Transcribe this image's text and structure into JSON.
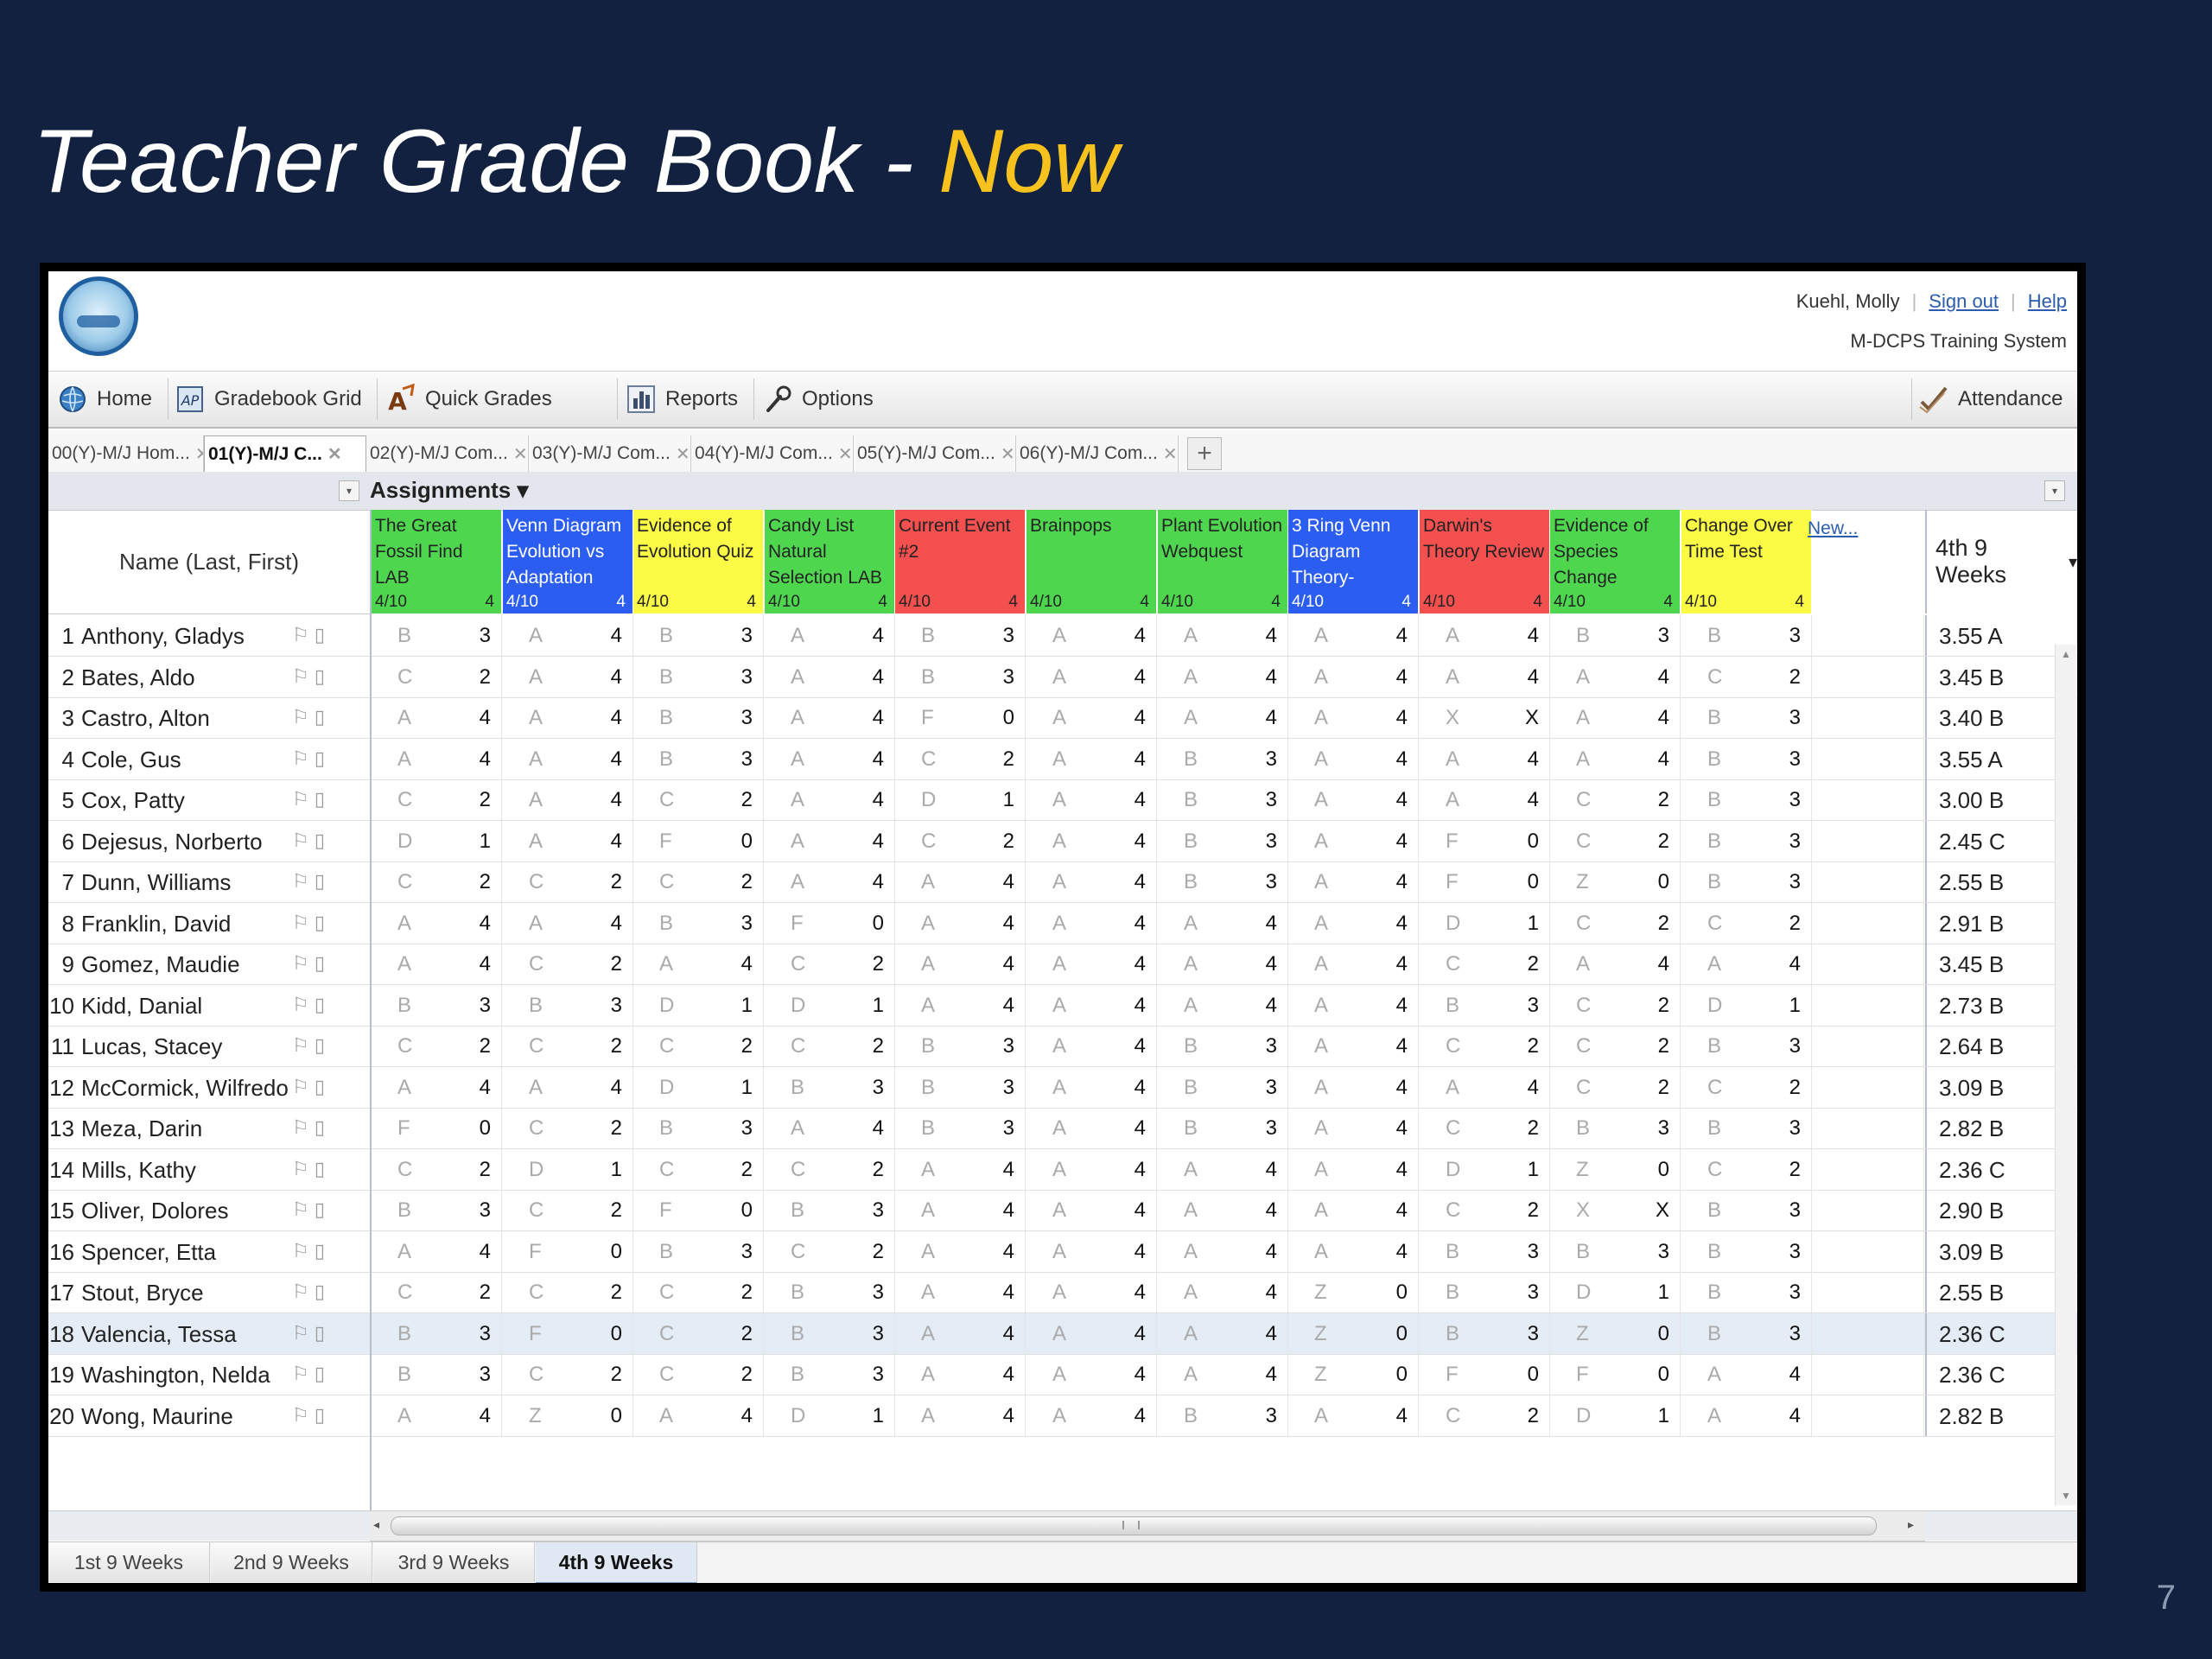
{
  "slide": {
    "title_main": "Teacher Grade Book - ",
    "title_highlight": "Now",
    "page_number": "7"
  },
  "header": {
    "user_name": "Kuehl, Molly",
    "sign_out": "Sign out",
    "help": "Help",
    "system_name": "M-DCPS Training System"
  },
  "toolbar": {
    "home": "Home",
    "gradebook_grid": "Gradebook Grid",
    "quick_grades": "Quick Grades",
    "reports": "Reports",
    "options": "Options",
    "attendance": "Attendance"
  },
  "class_tabs": [
    {
      "label": "00(Y)-M/J Hom...",
      "active": false
    },
    {
      "label": "01(Y)-M/J C...",
      "active": true
    },
    {
      "label": "02(Y)-M/J Com...",
      "active": false
    },
    {
      "label": "03(Y)-M/J Com...",
      "active": false
    },
    {
      "label": "04(Y)-M/J Com...",
      "active": false
    },
    {
      "label": "05(Y)-M/J Com...",
      "active": false
    },
    {
      "label": "06(Y)-M/J Com...",
      "active": false
    }
  ],
  "grid": {
    "assignments_label": "Assignments",
    "name_header": "Name (Last, First)",
    "new_link": "New...",
    "term_header": "4th 9 Weeks",
    "assignments": [
      {
        "name": "The Great Fossil Find LAB",
        "date": "4/10",
        "points": "4",
        "color": "#4fd64f"
      },
      {
        "name": "Venn Diagram Evolution vs Adaptation",
        "date": "4/10",
        "points": "4",
        "color": "#2b5ef0"
      },
      {
        "name": "Evidence of Evolution Quiz",
        "date": "4/10",
        "points": "4",
        "color": "#fbfb45"
      },
      {
        "name": "Candy List Natural Selection LAB",
        "date": "4/10",
        "points": "4",
        "color": "#4fd64f"
      },
      {
        "name": "Current Event #2",
        "date": "4/10",
        "points": "4",
        "color": "#f55050"
      },
      {
        "name": "Brainpops",
        "date": "4/10",
        "points": "4",
        "color": "#4fd64f"
      },
      {
        "name": "Plant Evolution Webquest",
        "date": "4/10",
        "points": "4",
        "color": "#4fd64f"
      },
      {
        "name": "3 Ring Venn Diagram Theory-",
        "date": "4/10",
        "points": "4",
        "color": "#2b5ef0"
      },
      {
        "name": "Darwin's Theory Review",
        "date": "4/10",
        "points": "4",
        "color": "#f55050"
      },
      {
        "name": "Evidence of Species Change Formal",
        "date": "4/10",
        "points": "4",
        "color": "#4fd64f"
      },
      {
        "name": "Change Over Time Test",
        "date": "4/10",
        "points": "4",
        "color": "#fbfb45"
      }
    ],
    "students": [
      {
        "num": "1",
        "name": "Anthony, Gladys",
        "grades": [
          [
            "B",
            "3"
          ],
          [
            "A",
            "4"
          ],
          [
            "B",
            "3"
          ],
          [
            "A",
            "4"
          ],
          [
            "B",
            "3"
          ],
          [
            "A",
            "4"
          ],
          [
            "A",
            "4"
          ],
          [
            "A",
            "4"
          ],
          [
            "A",
            "4"
          ],
          [
            "B",
            "3"
          ],
          [
            "B",
            "3"
          ]
        ],
        "total": "3.55 A"
      },
      {
        "num": "2",
        "name": "Bates, Aldo",
        "grades": [
          [
            "C",
            "2"
          ],
          [
            "A",
            "4"
          ],
          [
            "B",
            "3"
          ],
          [
            "A",
            "4"
          ],
          [
            "B",
            "3"
          ],
          [
            "A",
            "4"
          ],
          [
            "A",
            "4"
          ],
          [
            "A",
            "4"
          ],
          [
            "A",
            "4"
          ],
          [
            "A",
            "4"
          ],
          [
            "C",
            "2"
          ]
        ],
        "total": "3.45 B"
      },
      {
        "num": "3",
        "name": "Castro, Alton",
        "grades": [
          [
            "A",
            "4"
          ],
          [
            "A",
            "4"
          ],
          [
            "B",
            "3"
          ],
          [
            "A",
            "4"
          ],
          [
            "F",
            "0"
          ],
          [
            "A",
            "4"
          ],
          [
            "A",
            "4"
          ],
          [
            "A",
            "4"
          ],
          [
            "X",
            "X"
          ],
          [
            "A",
            "4"
          ],
          [
            "B",
            "3"
          ]
        ],
        "total": "3.40 B"
      },
      {
        "num": "4",
        "name": "Cole, Gus",
        "grades": [
          [
            "A",
            "4"
          ],
          [
            "A",
            "4"
          ],
          [
            "B",
            "3"
          ],
          [
            "A",
            "4"
          ],
          [
            "C",
            "2"
          ],
          [
            "A",
            "4"
          ],
          [
            "B",
            "3"
          ],
          [
            "A",
            "4"
          ],
          [
            "A",
            "4"
          ],
          [
            "A",
            "4"
          ],
          [
            "B",
            "3"
          ]
        ],
        "total": "3.55 A"
      },
      {
        "num": "5",
        "name": "Cox, Patty",
        "grades": [
          [
            "C",
            "2"
          ],
          [
            "A",
            "4"
          ],
          [
            "C",
            "2"
          ],
          [
            "A",
            "4"
          ],
          [
            "D",
            "1"
          ],
          [
            "A",
            "4"
          ],
          [
            "B",
            "3"
          ],
          [
            "A",
            "4"
          ],
          [
            "A",
            "4"
          ],
          [
            "C",
            "2"
          ],
          [
            "B",
            "3"
          ]
        ],
        "total": "3.00 B"
      },
      {
        "num": "6",
        "name": "Dejesus, Norberto",
        "grades": [
          [
            "D",
            "1"
          ],
          [
            "A",
            "4"
          ],
          [
            "F",
            "0"
          ],
          [
            "A",
            "4"
          ],
          [
            "C",
            "2"
          ],
          [
            "A",
            "4"
          ],
          [
            "B",
            "3"
          ],
          [
            "A",
            "4"
          ],
          [
            "F",
            "0"
          ],
          [
            "C",
            "2"
          ],
          [
            "B",
            "3"
          ]
        ],
        "total": "2.45 C"
      },
      {
        "num": "7",
        "name": "Dunn, Williams",
        "grades": [
          [
            "C",
            "2"
          ],
          [
            "C",
            "2"
          ],
          [
            "C",
            "2"
          ],
          [
            "A",
            "4"
          ],
          [
            "A",
            "4"
          ],
          [
            "A",
            "4"
          ],
          [
            "B",
            "3"
          ],
          [
            "A",
            "4"
          ],
          [
            "F",
            "0"
          ],
          [
            "Z",
            "0"
          ],
          [
            "B",
            "3"
          ]
        ],
        "total": "2.55 B"
      },
      {
        "num": "8",
        "name": "Franklin, David",
        "grades": [
          [
            "A",
            "4"
          ],
          [
            "A",
            "4"
          ],
          [
            "B",
            "3"
          ],
          [
            "F",
            "0"
          ],
          [
            "A",
            "4"
          ],
          [
            "A",
            "4"
          ],
          [
            "A",
            "4"
          ],
          [
            "A",
            "4"
          ],
          [
            "D",
            "1"
          ],
          [
            "C",
            "2"
          ],
          [
            "C",
            "2"
          ]
        ],
        "total": "2.91 B"
      },
      {
        "num": "9",
        "name": "Gomez, Maudie",
        "grades": [
          [
            "A",
            "4"
          ],
          [
            "C",
            "2"
          ],
          [
            "A",
            "4"
          ],
          [
            "C",
            "2"
          ],
          [
            "A",
            "4"
          ],
          [
            "A",
            "4"
          ],
          [
            "A",
            "4"
          ],
          [
            "A",
            "4"
          ],
          [
            "C",
            "2"
          ],
          [
            "A",
            "4"
          ],
          [
            "A",
            "4"
          ]
        ],
        "total": "3.45 B"
      },
      {
        "num": "10",
        "name": "Kidd, Danial",
        "grades": [
          [
            "B",
            "3"
          ],
          [
            "B",
            "3"
          ],
          [
            "D",
            "1"
          ],
          [
            "D",
            "1"
          ],
          [
            "A",
            "4"
          ],
          [
            "A",
            "4"
          ],
          [
            "A",
            "4"
          ],
          [
            "A",
            "4"
          ],
          [
            "B",
            "3"
          ],
          [
            "C",
            "2"
          ],
          [
            "D",
            "1"
          ]
        ],
        "total": "2.73 B"
      },
      {
        "num": "11",
        "name": "Lucas, Stacey",
        "grades": [
          [
            "C",
            "2"
          ],
          [
            "C",
            "2"
          ],
          [
            "C",
            "2"
          ],
          [
            "C",
            "2"
          ],
          [
            "B",
            "3"
          ],
          [
            "A",
            "4"
          ],
          [
            "B",
            "3"
          ],
          [
            "A",
            "4"
          ],
          [
            "C",
            "2"
          ],
          [
            "C",
            "2"
          ],
          [
            "B",
            "3"
          ]
        ],
        "total": "2.64 B"
      },
      {
        "num": "12",
        "name": "McCormick, Wilfredo",
        "grades": [
          [
            "A",
            "4"
          ],
          [
            "A",
            "4"
          ],
          [
            "D",
            "1"
          ],
          [
            "B",
            "3"
          ],
          [
            "B",
            "3"
          ],
          [
            "A",
            "4"
          ],
          [
            "B",
            "3"
          ],
          [
            "A",
            "4"
          ],
          [
            "A",
            "4"
          ],
          [
            "C",
            "2"
          ],
          [
            "C",
            "2"
          ]
        ],
        "total": "3.09 B"
      },
      {
        "num": "13",
        "name": "Meza, Darin",
        "grades": [
          [
            "F",
            "0"
          ],
          [
            "C",
            "2"
          ],
          [
            "B",
            "3"
          ],
          [
            "A",
            "4"
          ],
          [
            "B",
            "3"
          ],
          [
            "A",
            "4"
          ],
          [
            "B",
            "3"
          ],
          [
            "A",
            "4"
          ],
          [
            "C",
            "2"
          ],
          [
            "B",
            "3"
          ],
          [
            "B",
            "3"
          ]
        ],
        "total": "2.82 B"
      },
      {
        "num": "14",
        "name": "Mills, Kathy",
        "grades": [
          [
            "C",
            "2"
          ],
          [
            "D",
            "1"
          ],
          [
            "C",
            "2"
          ],
          [
            "C",
            "2"
          ],
          [
            "A",
            "4"
          ],
          [
            "A",
            "4"
          ],
          [
            "A",
            "4"
          ],
          [
            "A",
            "4"
          ],
          [
            "D",
            "1"
          ],
          [
            "Z",
            "0"
          ],
          [
            "C",
            "2"
          ]
        ],
        "total": "2.36 C"
      },
      {
        "num": "15",
        "name": "Oliver, Dolores",
        "grades": [
          [
            "B",
            "3"
          ],
          [
            "C",
            "2"
          ],
          [
            "F",
            "0"
          ],
          [
            "B",
            "3"
          ],
          [
            "A",
            "4"
          ],
          [
            "A",
            "4"
          ],
          [
            "A",
            "4"
          ],
          [
            "A",
            "4"
          ],
          [
            "C",
            "2"
          ],
          [
            "X",
            "X"
          ],
          [
            "B",
            "3"
          ]
        ],
        "total": "2.90 B"
      },
      {
        "num": "16",
        "name": "Spencer, Etta",
        "grades": [
          [
            "A",
            "4"
          ],
          [
            "F",
            "0"
          ],
          [
            "B",
            "3"
          ],
          [
            "C",
            "2"
          ],
          [
            "A",
            "4"
          ],
          [
            "A",
            "4"
          ],
          [
            "A",
            "4"
          ],
          [
            "A",
            "4"
          ],
          [
            "B",
            "3"
          ],
          [
            "B",
            "3"
          ],
          [
            "B",
            "3"
          ]
        ],
        "total": "3.09 B"
      },
      {
        "num": "17",
        "name": "Stout, Bryce",
        "grades": [
          [
            "C",
            "2"
          ],
          [
            "C",
            "2"
          ],
          [
            "C",
            "2"
          ],
          [
            "B",
            "3"
          ],
          [
            "A",
            "4"
          ],
          [
            "A",
            "4"
          ],
          [
            "A",
            "4"
          ],
          [
            "Z",
            "0"
          ],
          [
            "B",
            "3"
          ],
          [
            "D",
            "1"
          ],
          [
            "B",
            "3"
          ]
        ],
        "total": "2.55 B"
      },
      {
        "num": "18",
        "name": "Valencia, Tessa",
        "grades": [
          [
            "B",
            "3"
          ],
          [
            "F",
            "0"
          ],
          [
            "C",
            "2"
          ],
          [
            "B",
            "3"
          ],
          [
            "A",
            "4"
          ],
          [
            "A",
            "4"
          ],
          [
            "A",
            "4"
          ],
          [
            "Z",
            "0"
          ],
          [
            "B",
            "3"
          ],
          [
            "Z",
            "0"
          ],
          [
            "B",
            "3"
          ]
        ],
        "total": "2.36 C"
      },
      {
        "num": "19",
        "name": "Washington, Nelda",
        "grades": [
          [
            "B",
            "3"
          ],
          [
            "C",
            "2"
          ],
          [
            "C",
            "2"
          ],
          [
            "B",
            "3"
          ],
          [
            "A",
            "4"
          ],
          [
            "A",
            "4"
          ],
          [
            "A",
            "4"
          ],
          [
            "Z",
            "0"
          ],
          [
            "F",
            "0"
          ],
          [
            "F",
            "0"
          ],
          [
            "A",
            "4"
          ]
        ],
        "total": "2.36 C"
      },
      {
        "num": "20",
        "name": "Wong, Maurine",
        "grades": [
          [
            "A",
            "4"
          ],
          [
            "Z",
            "0"
          ],
          [
            "A",
            "4"
          ],
          [
            "D",
            "1"
          ],
          [
            "A",
            "4"
          ],
          [
            "A",
            "4"
          ],
          [
            "B",
            "3"
          ],
          [
            "A",
            "4"
          ],
          [
            "C",
            "2"
          ],
          [
            "D",
            "1"
          ],
          [
            "A",
            "4"
          ]
        ],
        "total": "2.82 B"
      }
    ]
  },
  "term_tabs": [
    {
      "label": "1st 9 Weeks",
      "active": false
    },
    {
      "label": "2nd 9 Weeks",
      "active": false
    },
    {
      "label": "3rd 9 Weeks",
      "active": false
    },
    {
      "label": "4th 9 Weeks",
      "active": true
    }
  ]
}
